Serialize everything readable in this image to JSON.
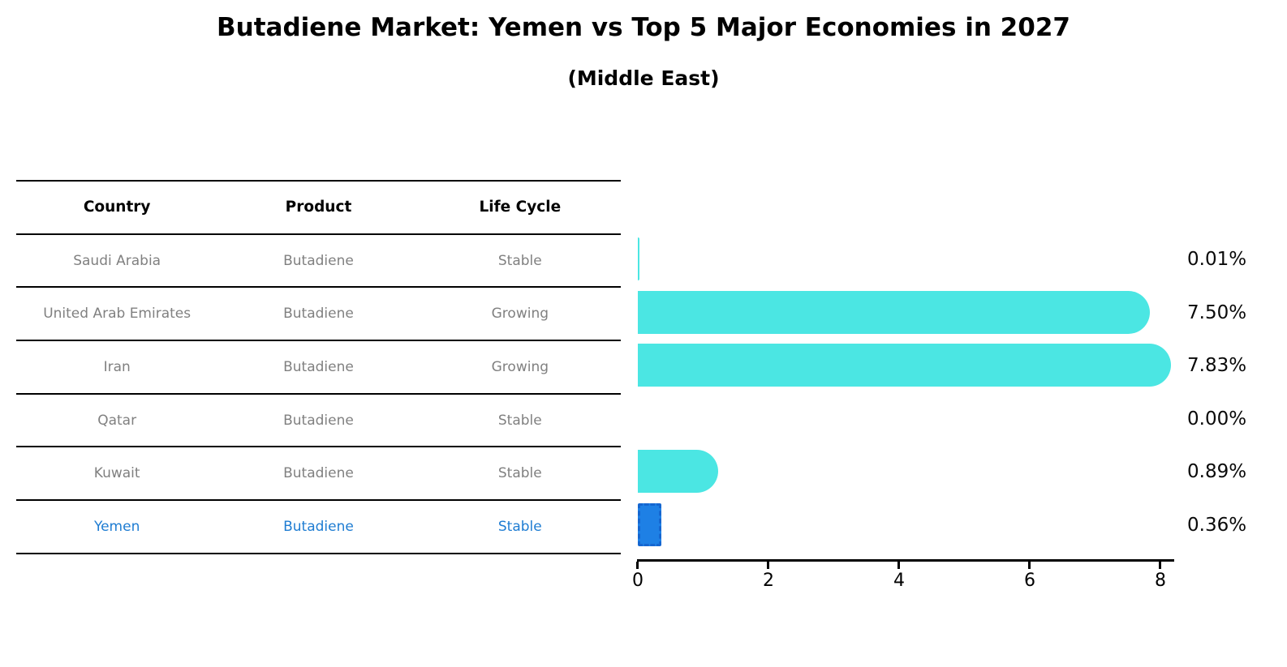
{
  "title": "Butadiene Market: Yemen vs Top 5 Major Economies in 2027",
  "subtitle": "(Middle East)",
  "table": {
    "headers": [
      "Country",
      "Product",
      "Life Cycle"
    ]
  },
  "rows": [
    {
      "country": "Saudi Arabia",
      "product": "Butadiene",
      "life_cycle": "Stable",
      "value": 0.01,
      "value_label": "0.01%",
      "highlight": false
    },
    {
      "country": "United Arab Emirates",
      "product": "Butadiene",
      "life_cycle": "Growing",
      "value": 7.5,
      "value_label": "7.50%",
      "highlight": false
    },
    {
      "country": "Iran",
      "product": "Butadiene",
      "life_cycle": "Growing",
      "value": 7.83,
      "value_label": "7.83%",
      "highlight": false
    },
    {
      "country": "Qatar",
      "product": "Butadiene",
      "life_cycle": "Stable",
      "value": 0.0,
      "value_label": "0.00%",
      "highlight": false
    },
    {
      "country": "Kuwait",
      "product": "Butadiene",
      "life_cycle": "Stable",
      "value": 0.89,
      "value_label": "0.89%",
      "highlight": false
    },
    {
      "country": "Yemen",
      "product": "Butadiene",
      "life_cycle": "Stable",
      "value": 0.36,
      "value_label": "0.36%",
      "highlight": true
    }
  ],
  "chart_data": {
    "type": "bar",
    "orientation": "horizontal",
    "title": "Butadiene Market: Yemen vs Top 5 Major Economies in 2027",
    "subtitle": "(Middle East)",
    "categories": [
      "Saudi Arabia",
      "United Arab Emirates",
      "Iran",
      "Qatar",
      "Kuwait",
      "Yemen"
    ],
    "values": [
      0.01,
      7.5,
      7.83,
      0.0,
      0.89,
      0.36
    ],
    "value_labels": [
      "0.01%",
      "7.50%",
      "7.83%",
      "0.00%",
      "0.89%",
      "0.36%"
    ],
    "xlabel": "",
    "ylabel": "",
    "xlim": [
      0,
      8.25
    ],
    "x_ticks": [
      "0",
      "2",
      "4",
      "6",
      "8"
    ],
    "grid": false,
    "legend": false,
    "highlight_category": "Yemen"
  },
  "colors": {
    "bar": "#4be6e3",
    "highlight_bar": "#1e80e5",
    "highlight_border": "#1566d0",
    "highlight_text": "#1e7cd2",
    "row_text": "#808080",
    "header_text": "#000000",
    "background": "#ffffff"
  }
}
